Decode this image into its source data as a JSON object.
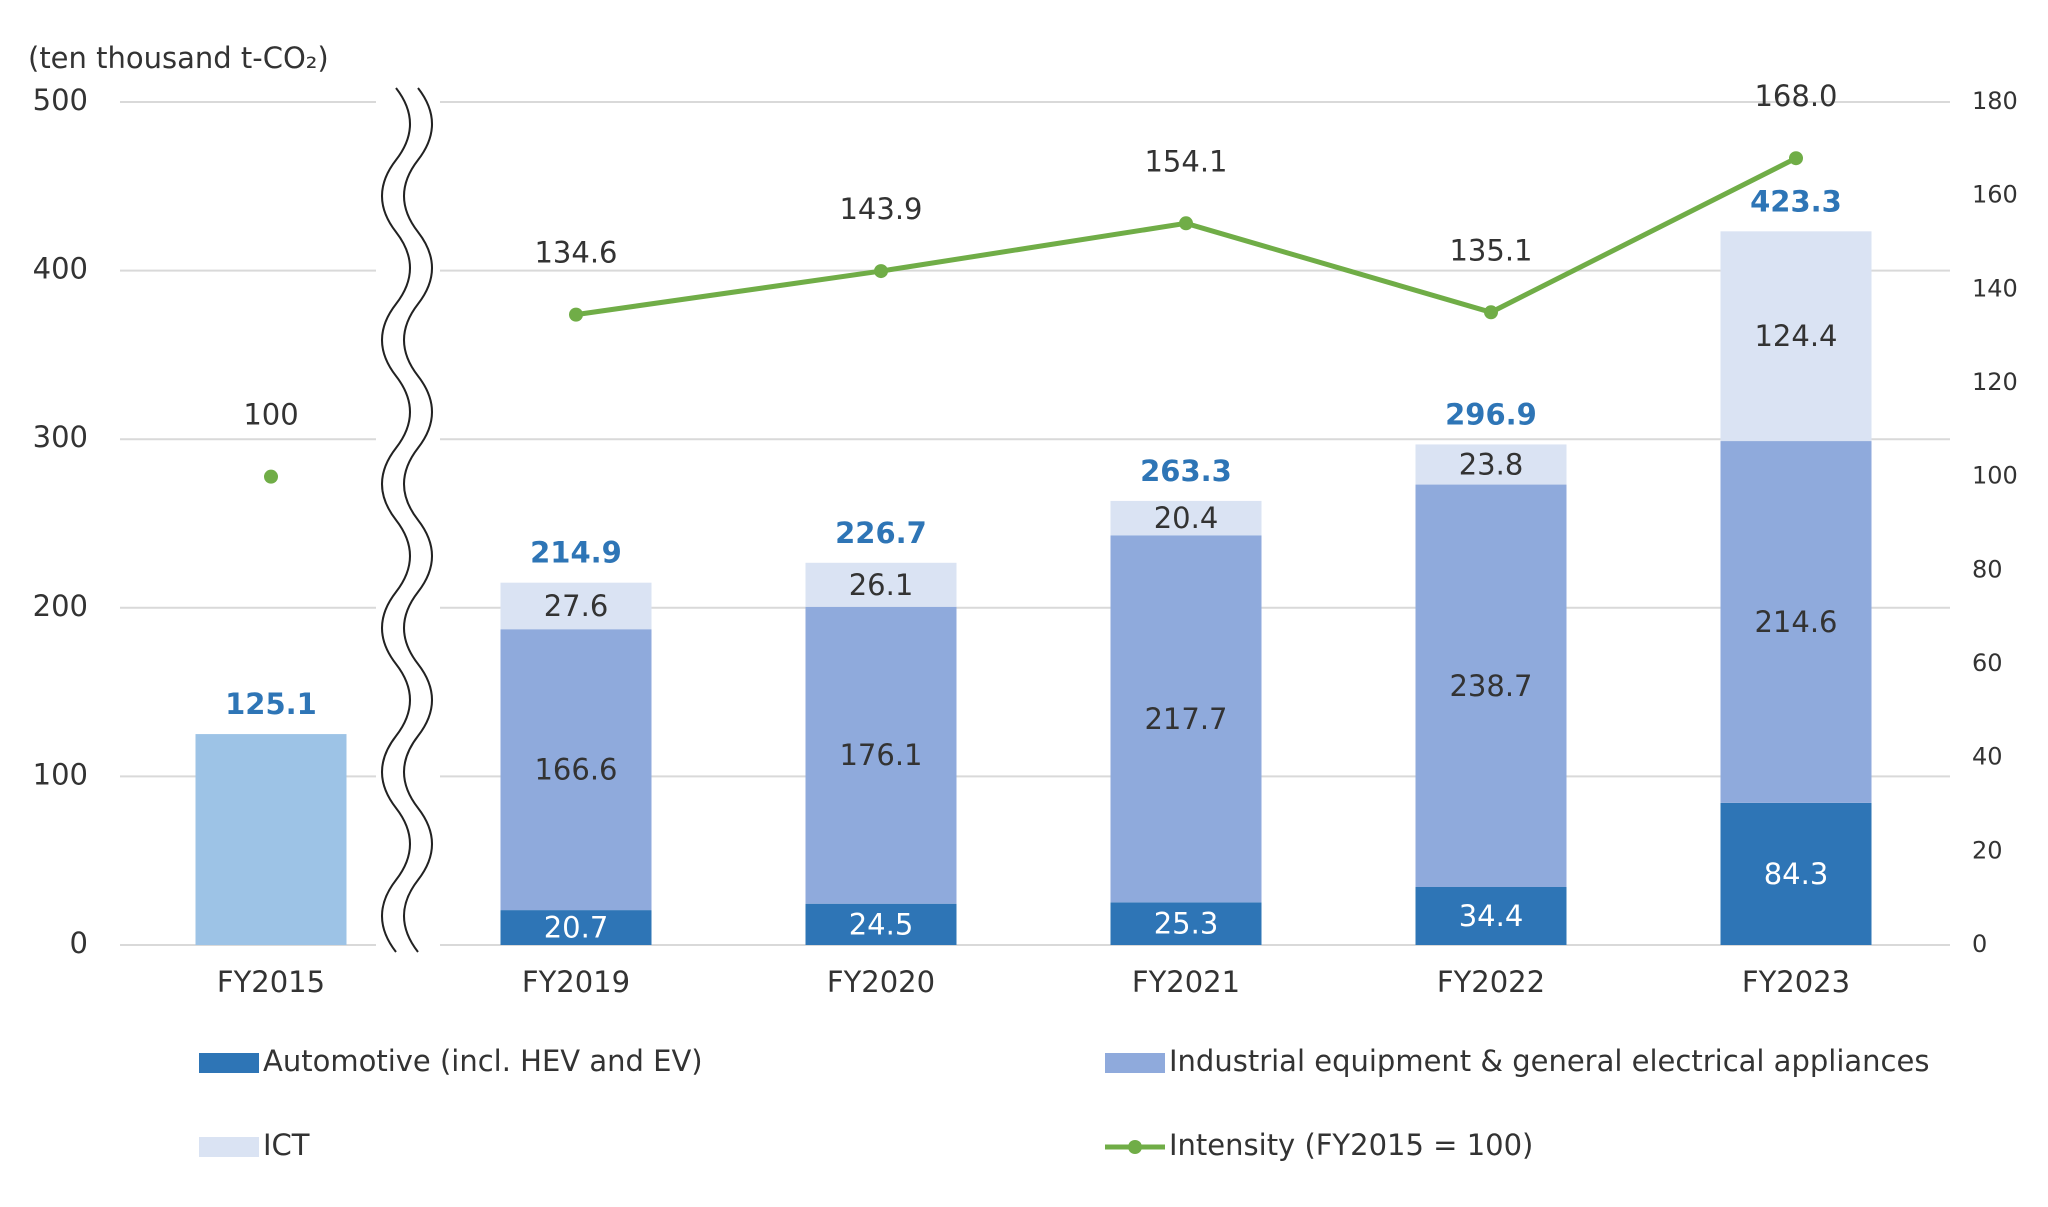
{
  "chart_data": {
    "type": "bar",
    "stacked": true,
    "y_label": "(ten thousand t-CO₂)",
    "categories": [
      "FY2015",
      "FY2019",
      "FY2020",
      "FY2021",
      "FY2022",
      "FY2023"
    ],
    "axis_break": true,
    "series": [
      {
        "color": "#9dc3e6",
        "values": [
          125.1,
          null,
          null,
          null,
          null,
          null
        ]
      },
      {
        "name": "Automotive (incl. HEV and EV)",
        "color": "#2e75b6",
        "values": [
          null,
          20.7,
          24.5,
          25.3,
          34.4,
          84.3
        ]
      },
      {
        "name": "Industrial equipment & general electrical appliances",
        "color": "#8faadc",
        "values": [
          null,
          166.6,
          176.1,
          217.7,
          238.7,
          214.6
        ]
      },
      {
        "name": "ICT",
        "color": "#dae3f3",
        "values": [
          null,
          27.6,
          26.1,
          20.4,
          23.8,
          124.4
        ]
      },
      {
        "name": "Intensity (FY2015 = 100)",
        "type": "line",
        "axis": "y2",
        "color": "#70ad47",
        "values": [
          100,
          134.6,
          143.9,
          154.1,
          135.1,
          168.0
        ],
        "value_labels": [
          "100",
          "134.6",
          "143.9",
          "154.1",
          "135.1",
          "168.0"
        ]
      }
    ],
    "totals": [
      125.1,
      214.9,
      226.7,
      263.3,
      296.9,
      423.3
    ],
    "totals_color": "#2e75b6",
    "ylim": [
      0,
      500
    ],
    "yticks": [
      0,
      100,
      200,
      300,
      400,
      500
    ],
    "y2lim": [
      0,
      180
    ],
    "y2ticks": [
      0,
      20,
      40,
      60,
      80,
      100,
      120,
      140,
      160,
      180
    ],
    "grid": true
  }
}
